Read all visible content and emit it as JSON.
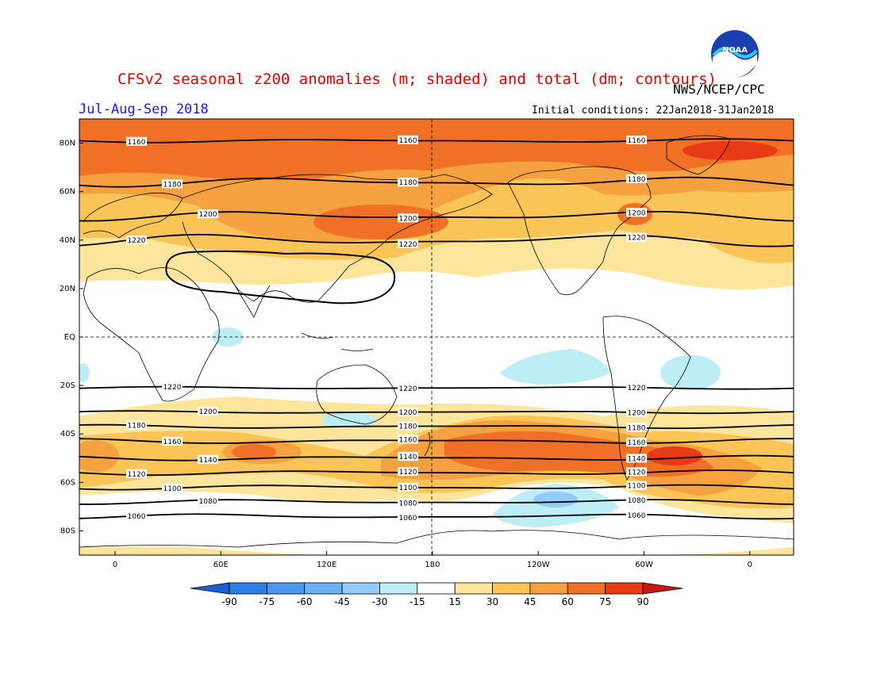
{
  "header": {
    "title": "CFSv2 seasonal z200 anomalies (m; shaded) and total (dm; contours)",
    "period": "Jul-Aug-Sep 2018",
    "initial_conditions": "Initial conditions: 22Jan2018-31Jan2018",
    "agency": "NWS/NCEP/CPC",
    "logo_text": "NOAA"
  },
  "axes": {
    "lat_ticks": [
      "80N",
      "60N",
      "40N",
      "20N",
      "EQ",
      "20S",
      "40S",
      "60S",
      "80S"
    ],
    "lon_ticks": [
      "0",
      "60E",
      "120E",
      "180",
      "120W",
      "60W",
      "0"
    ]
  },
  "colorbar": {
    "ticks": [
      "-90",
      "-75",
      "-60",
      "-45",
      "-30",
      "-15",
      "15",
      "30",
      "45",
      "60",
      "75",
      "90"
    ],
    "colors": [
      "#1f5fd6",
      "#2f7fe6",
      "#4d97ee",
      "#6db0f2",
      "#93cdf6",
      "#bdeef6",
      "#ffffff",
      "#fde59b",
      "#fbc457",
      "#f6a140",
      "#f07026",
      "#e83b15",
      "#c8170f"
    ]
  },
  "contours": [
    {
      "label": "1160",
      "lat": 81,
      "amp": 1.5
    },
    {
      "label": "1180",
      "lat": 64,
      "amp": 4
    },
    {
      "label": "1200",
      "lat": 50,
      "amp": 4
    },
    {
      "label": "1220",
      "lat": 40,
      "amp": 5
    },
    {
      "label": "1220",
      "lat": -21,
      "amp": 1
    },
    {
      "label": "1200",
      "lat": -31,
      "amp": 1
    },
    {
      "label": "1180",
      "lat": -37,
      "amp": 1.5
    },
    {
      "label": "1160",
      "lat": -43,
      "amp": 2
    },
    {
      "label": "1140",
      "lat": -50,
      "amp": 2
    },
    {
      "label": "1120",
      "lat": -56,
      "amp": 2
    },
    {
      "label": "1100",
      "lat": -62,
      "amp": 2
    },
    {
      "label": "1080",
      "lat": -68,
      "amp": 2
    },
    {
      "label": "1060",
      "lat": -74,
      "amp": 2
    }
  ]
}
